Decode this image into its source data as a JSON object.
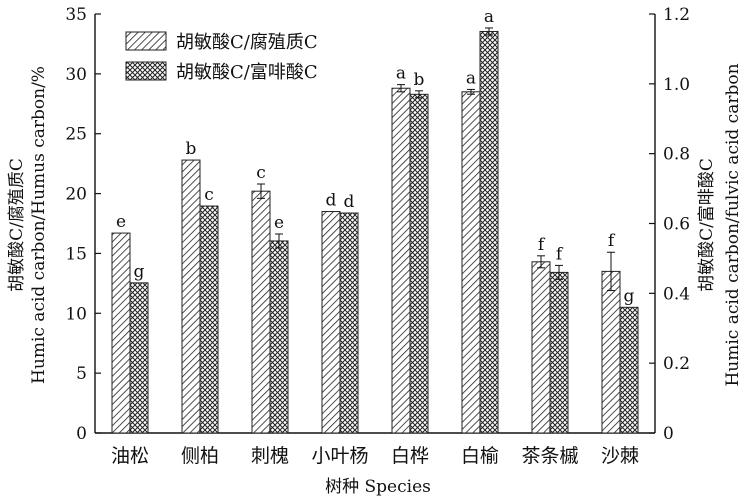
{
  "chart_data": {
    "type": "bar",
    "categories": [
      "油松",
      "侧柏",
      "刺槐",
      "小叶杨",
      "白桦",
      "白榆",
      "茶条槭",
      "沙棘"
    ],
    "series": [
      {
        "name": "胡敏酸C/腐殖质C",
        "axis": "left",
        "values": [
          16.7,
          22.8,
          20.2,
          18.5,
          28.8,
          28.5,
          14.3,
          13.5
        ],
        "errors": [
          0,
          0,
          0.6,
          0,
          0.3,
          0.2,
          0.5,
          1.6
        ],
        "labels": [
          "e",
          "b",
          "c",
          "d",
          "a",
          "a",
          "f",
          "f"
        ]
      },
      {
        "name": "胡敏酸C/富啡酸C",
        "axis": "right",
        "values": [
          0.43,
          0.65,
          0.55,
          0.63,
          0.97,
          1.15,
          0.46,
          0.36
        ],
        "errors": [
          0,
          0,
          0.02,
          0,
          0.01,
          0.01,
          0.02,
          0
        ],
        "labels": [
          "g",
          "c",
          "e",
          "d",
          "b",
          "a",
          "f",
          "g"
        ]
      }
    ],
    "xlabel": "树种 Species",
    "ylabel_left": "Humic acid carbon/Humus carbon/%",
    "ylabel_left_cn": "胡敏酸C/腐殖质C",
    "ylabel_right": "Humic acid carbon/fulvic acid carbon",
    "ylabel_right_cn": "胡敏酸C/富啡酸C",
    "ylim_left": [
      0,
      35
    ],
    "yticks_left": [
      0,
      5,
      10,
      15,
      20,
      25,
      30,
      35
    ],
    "ylim_right": [
      0,
      1.2
    ],
    "yticks_right": [
      0,
      0.2,
      0.4,
      0.6,
      0.8,
      1.0,
      1.2
    ],
    "ytick_labels_right": [
      "0",
      "0.2",
      "0.4",
      "0.6",
      "0.8",
      "1.0",
      "1.2"
    ],
    "legend_position": "top-left",
    "grid": false
  }
}
